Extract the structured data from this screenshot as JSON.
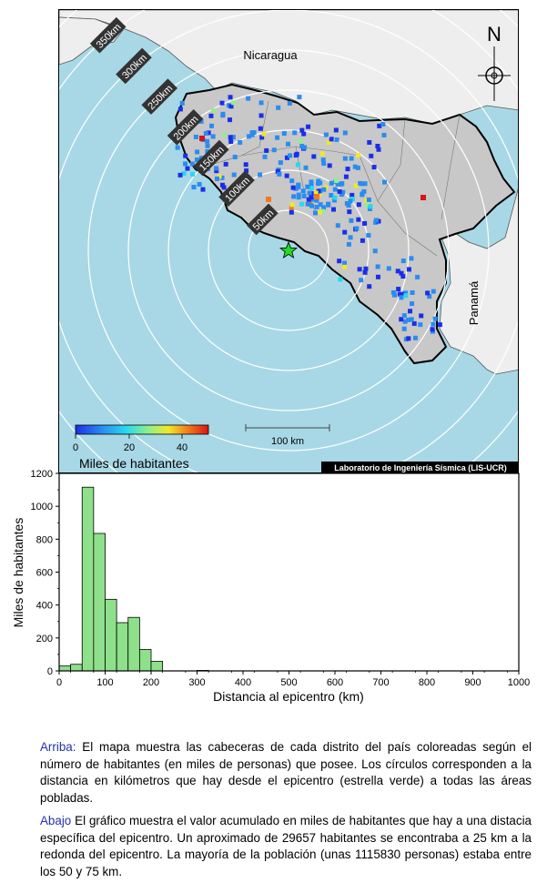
{
  "map": {
    "north_label": "N",
    "countries": {
      "nicaragua": "Nicaragua",
      "panama": "Panamá"
    },
    "ring_labels": [
      "50km",
      "100km",
      "150km",
      "200km",
      "250km",
      "300km",
      "350km"
    ],
    "scale_bar": "100 km",
    "legend": {
      "title": "Miles de habitantes",
      "ticks": [
        "0",
        "20",
        "40"
      ],
      "colors": [
        "#1a2ee8",
        "#2a8cf0",
        "#27d8f0",
        "#8ff08a",
        "#f0e82a",
        "#f07a1a",
        "#d81414"
      ]
    },
    "credit": "Laboratorio de Ingeniería Sísmica (LIS-UCR)",
    "epicenter_color": "#22dd22",
    "sea_color": "#a8d8e6",
    "land_color": "#eeeeee",
    "cr_color": "#c8c8c8"
  },
  "chart_data": {
    "type": "bar",
    "xlabel": "Distancia al epicentro (km)",
    "ylabel": "Miles de habitantes",
    "xlim": [
      0,
      1000
    ],
    "ylim": [
      0,
      1200
    ],
    "xticks": [
      0,
      100,
      200,
      300,
      400,
      500,
      600,
      700,
      800,
      900,
      1000
    ],
    "yticks": [
      0,
      200,
      400,
      600,
      800,
      1000,
      1200
    ],
    "bin_width": 25,
    "bins_start": [
      0,
      25,
      50,
      75,
      100,
      125,
      150,
      175,
      200,
      300
    ],
    "values": [
      29.657,
      40,
      1115.83,
      835,
      435,
      293,
      325,
      130,
      58,
      3
    ],
    "bar_color": "#8fe08a"
  },
  "captions": {
    "top_lead": "Arriba:",
    "top_text": " El mapa muestra las cabeceras de cada distrito del país coloreadas según el número de habitantes (en miles de personas) que posee.  Los círculos corresponden a la distancia en kilómetros que hay desde el epicentro (estrella verde) a todas las áreas pobladas.",
    "bottom_lead": "Abajo",
    "bottom_text": " El gráfico muestra el valor acumulado en miles de habitantes que hay a una distacia específica del epicentro.  Un aproximado de 29657 habitantes se encontraba a 25 km a la redonda del epicentro.  La mayoría de la población (unas 1115830 personas) estaba entre los 50 y 75 km."
  }
}
